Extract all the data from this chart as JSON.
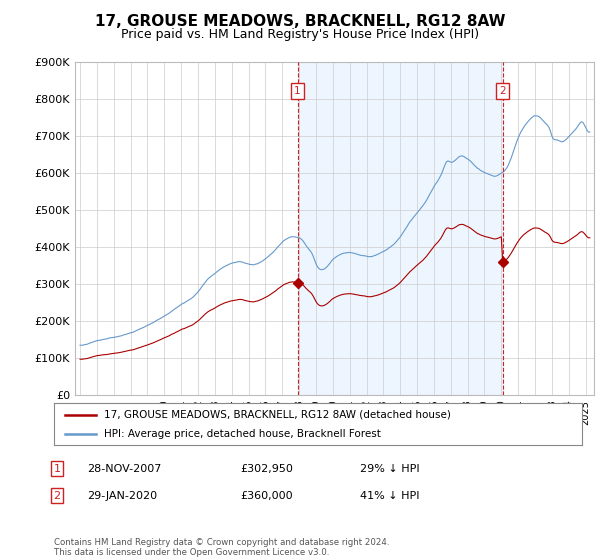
{
  "title": "17, GROUSE MEADOWS, BRACKNELL, RG12 8AW",
  "subtitle": "Price paid vs. HM Land Registry's House Price Index (HPI)",
  "title_fontsize": 11,
  "subtitle_fontsize": 9,
  "hpi_color": "#6699cc",
  "hpi_fill_color": "#ddeeff",
  "price_color": "#aa0000",
  "vline_color": "#cc2222",
  "ylim": [
    0,
    900000
  ],
  "yticks": [
    0,
    100000,
    200000,
    300000,
    400000,
    500000,
    600000,
    700000,
    800000,
    900000
  ],
  "ytick_labels": [
    "£0",
    "£100K",
    "£200K",
    "£300K",
    "£400K",
    "£500K",
    "£600K",
    "£700K",
    "£800K",
    "£900K"
  ],
  "legend_label_price": "17, GROUSE MEADOWS, BRACKNELL, RG12 8AW (detached house)",
  "legend_label_hpi": "HPI: Average price, detached house, Bracknell Forest",
  "annotation1_date": "28-NOV-2007",
  "annotation1_price": "£302,950",
  "annotation1_pct": "29% ↓ HPI",
  "annotation2_date": "29-JAN-2020",
  "annotation2_price": "£360,000",
  "annotation2_pct": "41% ↓ HPI",
  "footnote": "Contains HM Land Registry data © Crown copyright and database right 2024.\nThis data is licensed under the Open Government Licence v3.0.",
  "bg_color": "#ffffff",
  "grid_color": "#cccccc",
  "sale1_year": 2007.91,
  "sale1_price": 302950,
  "sale2_year": 2020.08,
  "sale2_price": 360000,
  "xlim_min": 1994.7,
  "xlim_max": 2025.5
}
